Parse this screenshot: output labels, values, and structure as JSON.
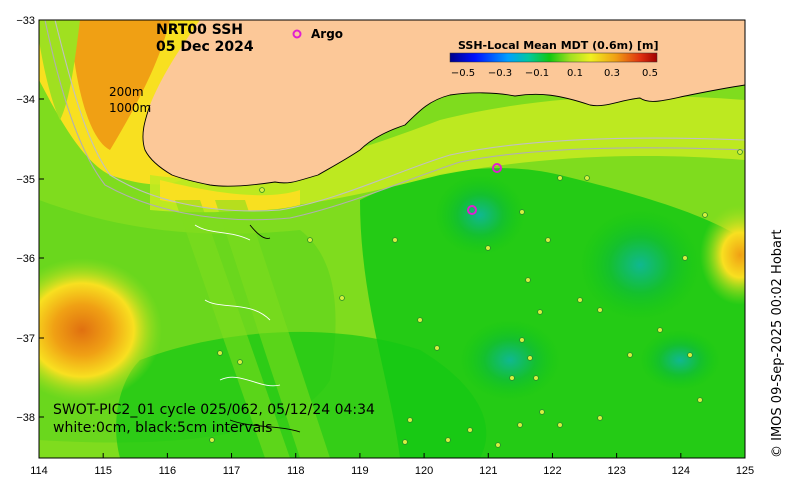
{
  "map": {
    "title_line1": "NRT00 SSH",
    "title_line2": "05 Dec 2024",
    "argo_label": "Argo",
    "contour_labels": [
      "200m",
      "1000m"
    ],
    "swot_line1": "SWOT-PIC2_01 cycle 025/062, 05/12/24 04:34",
    "swot_line2": "white:0cm, black:5cm intervals",
    "credit": "© IMOS 09-Sep-2025 00:02 Hobart",
    "colorbar_title": "SSH-Local Mean MDT (0.6m) [m]",
    "colorbar_ticks": [
      "−0.5",
      "−0.3",
      "−0.1",
      "0.1",
      "0.3",
      "0.5"
    ],
    "x_ticks": [
      "114",
      "115",
      "116",
      "117",
      "118",
      "119",
      "120",
      "121",
      "122",
      "123",
      "124",
      "125"
    ],
    "y_ticks": [
      "−33",
      "−34",
      "−35",
      "−36",
      "−37",
      "−38"
    ],
    "colors": {
      "land": "#fcc898",
      "ocean_base": "#7fdc1e",
      "orange": "#f0a014",
      "argo": "#e020d0",
      "green_dark": "#14c814",
      "teal": "#10b890"
    }
  }
}
